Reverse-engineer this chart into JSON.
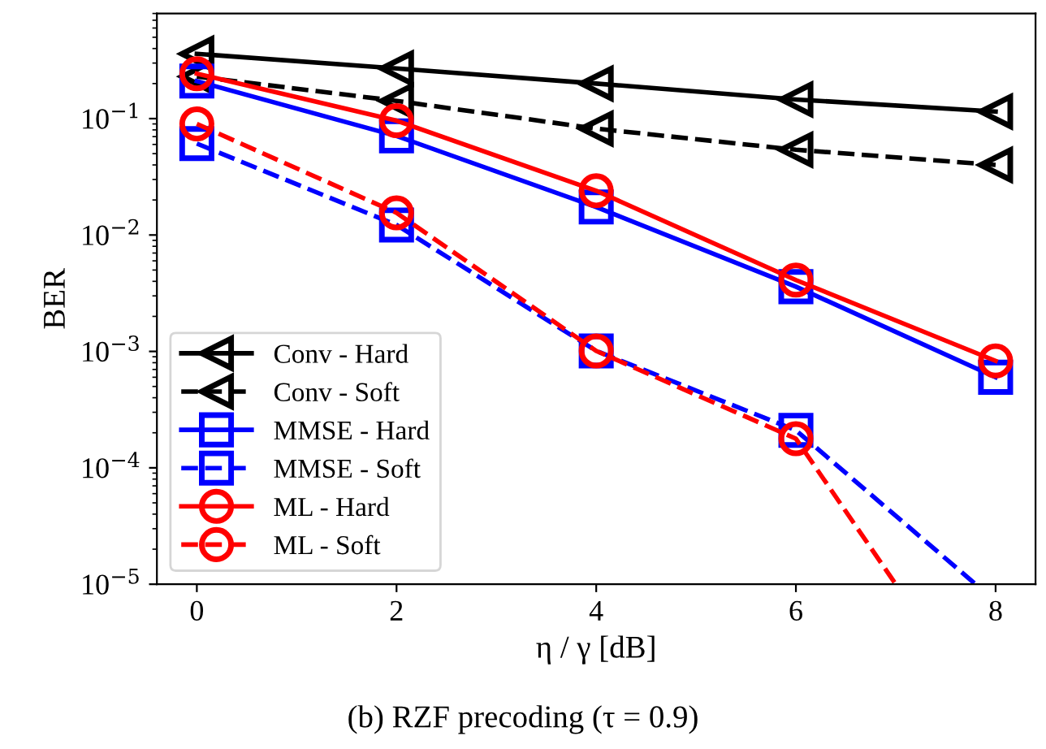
{
  "chart_data": {
    "type": "line",
    "title": "(b) RZF precoding (τ = 0.9)",
    "xlabel": "η / γ [dB]",
    "ylabel": "BER",
    "log": "y",
    "xlim": [
      -0.4,
      8.4
    ],
    "xticks": [
      0,
      2,
      4,
      6,
      8
    ],
    "ylim": [
      1e-05,
      0.8
    ],
    "yticks": [
      {
        "value": 1e-05,
        "label": "10$^{−5}$"
      },
      {
        "value": 0.0001,
        "label": "10$^{−4}$"
      },
      {
        "value": 0.001,
        "label": "10$^{−3}$"
      },
      {
        "value": 0.01,
        "label": "10$^{−2}$"
      },
      {
        "value": 0.1,
        "label": "10$^{−1}$"
      }
    ],
    "grid": false,
    "legend": "lower left",
    "series": [
      {
        "name": "Conv - Hard",
        "color": "#000000",
        "marker": "triangle",
        "line_style": "solid",
        "x": [
          0,
          2,
          4,
          6,
          8
        ],
        "values": [
          0.36,
          0.27,
          0.2,
          0.146,
          0.115
        ]
      },
      {
        "name": "Conv - Soft",
        "color": "#000000",
        "marker": "triangle",
        "line_style": "dashed",
        "x": [
          0,
          2,
          4,
          6,
          8
        ],
        "values": [
          0.23,
          0.142,
          0.082,
          0.054,
          0.04
        ]
      },
      {
        "name": "MMSE - Hard",
        "color": "#0000ff",
        "marker": "square",
        "line_style": "solid",
        "x": [
          0,
          2,
          4,
          6,
          8
        ],
        "values": [
          0.21,
          0.071,
          0.0174,
          0.0036,
          0.0006
        ]
      },
      {
        "name": "MMSE - Soft",
        "color": "#0000ff",
        "marker": "square",
        "line_style": "dashed",
        "x": [
          0,
          2,
          4,
          6,
          7.8
        ],
        "values": [
          0.061,
          0.0122,
          0.00101,
          0.00021,
          1e-05
        ]
      },
      {
        "name": "ML - Hard",
        "color": "#ff0000",
        "marker": "circle",
        "line_style": "solid",
        "x": [
          0,
          2,
          4,
          6,
          8
        ],
        "values": [
          0.243,
          0.096,
          0.024,
          0.0041,
          0.00083
        ]
      },
      {
        "name": "ML - Soft",
        "color": "#ff0000",
        "marker": "circle",
        "line_style": "dashed",
        "x": [
          0,
          2,
          4,
          6,
          7.0
        ],
        "values": [
          0.09,
          0.0155,
          0.00101,
          0.000178,
          1e-05
        ]
      }
    ]
  }
}
